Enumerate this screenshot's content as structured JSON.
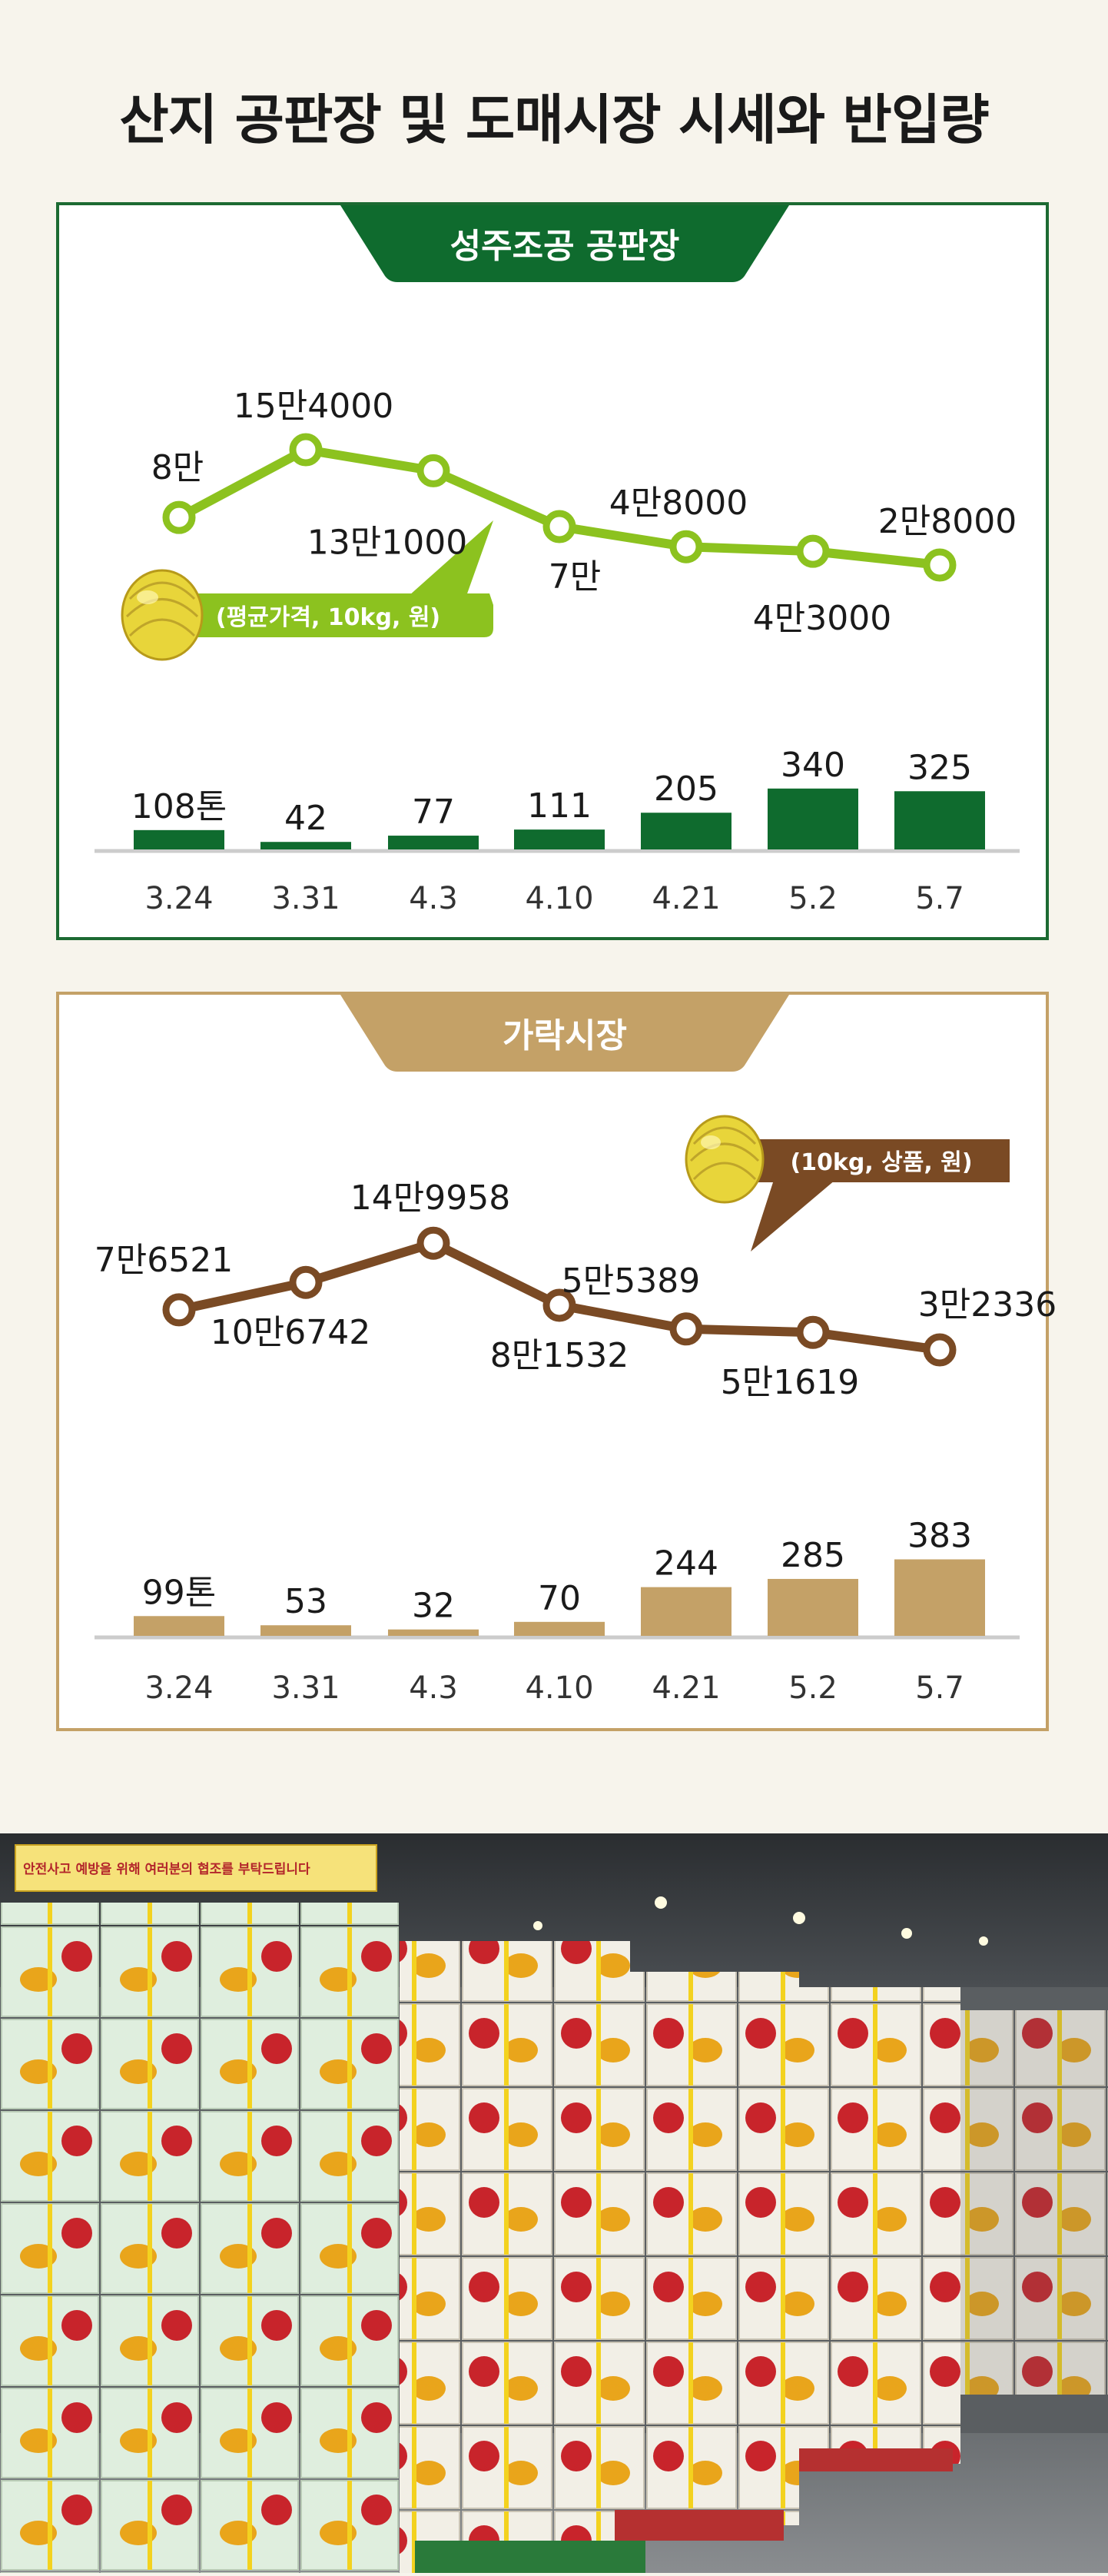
{
  "title": "산지 공판장 및 도매시장 시세와 반입량",
  "colors": {
    "green": "#0f6b2e",
    "lime": "#8cc21f",
    "gold": "#c4a167",
    "brown": "#7a4a24",
    "background": "#f7f4ec"
  },
  "chart_data": [
    {
      "type": "bar+line",
      "title": "성주조공 공판장",
      "categories": [
        "3.24",
        "3.31",
        "4.3",
        "4.10",
        "4.21",
        "5.2",
        "5.7"
      ],
      "price_series": {
        "name": "(평균가격, 10kg, 원)",
        "values": [
          80000,
          154000,
          131000,
          70000,
          48000,
          43000,
          28000
        ],
        "labels": [
          "8만",
          "15만4000",
          "13만1000",
          "7만",
          "4만8000",
          "4만3000",
          "2만8000"
        ]
      },
      "volume_series": {
        "unit": "톤",
        "values": [
          108,
          42,
          77,
          111,
          205,
          340,
          325
        ],
        "labels": [
          "108톤",
          "42",
          "77",
          "111",
          "205",
          "340",
          "325"
        ]
      }
    },
    {
      "type": "bar+line",
      "title": "가락시장",
      "categories": [
        "3.24",
        "3.31",
        "4.3",
        "4.10",
        "4.21",
        "5.2",
        "5.7"
      ],
      "price_series": {
        "name": "(10kg, 상품, 원)",
        "values": [
          76521,
          106742,
          149958,
          81532,
          55389,
          51619,
          32336
        ],
        "labels": [
          "7만6521",
          "10만6742",
          "14만9958",
          "8만1532",
          "5만5389",
          "5만1619",
          "3만2336"
        ]
      },
      "volume_series": {
        "unit": "톤",
        "values": [
          99,
          53,
          32,
          70,
          244,
          285,
          383
        ],
        "labels": [
          "99톤",
          "53",
          "32",
          "70",
          "244",
          "285",
          "383"
        ]
      }
    }
  ],
  "photo": {
    "banner_text": "안전사고 예방을 위해 여러분의 협조를 부탁드립니다"
  }
}
